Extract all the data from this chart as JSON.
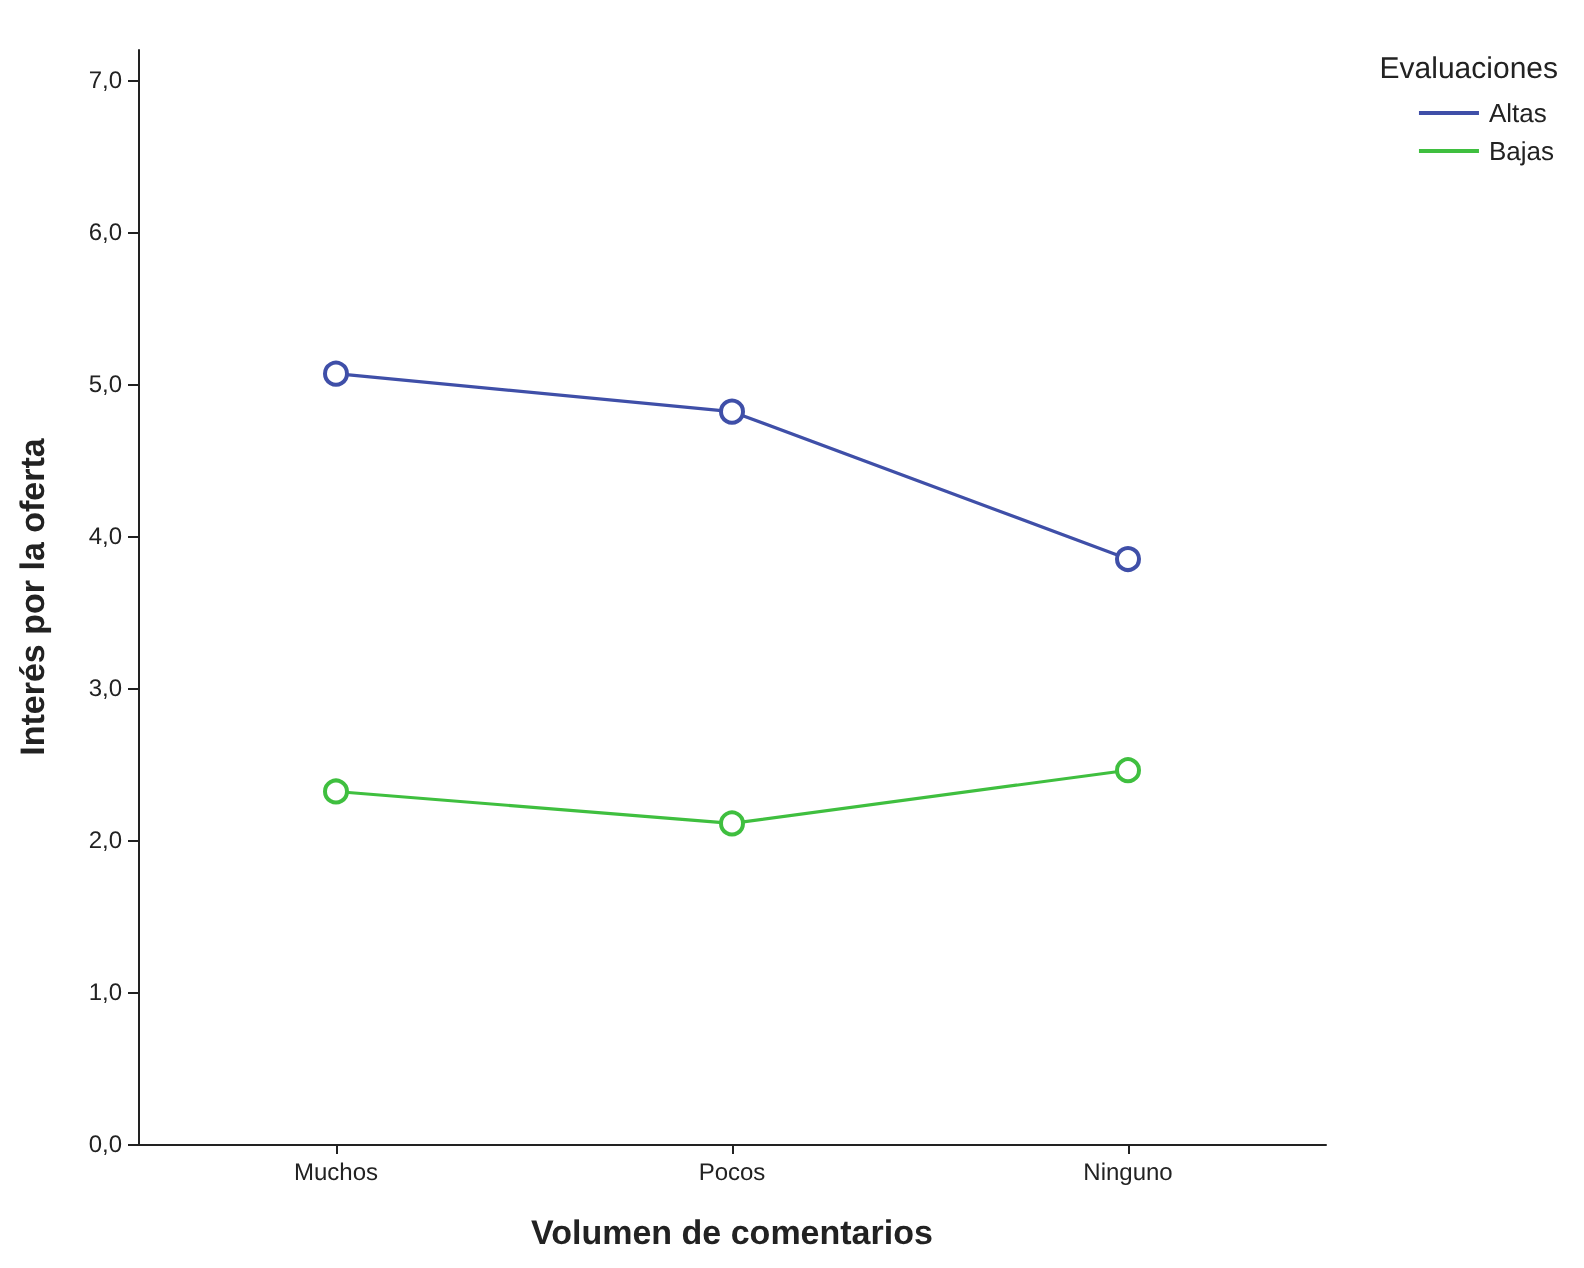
{
  "chart_data": {
    "type": "line",
    "xlabel": "Volumen de comentarios",
    "ylabel": "Interés por la oferta",
    "legend_title": "Evaluaciones",
    "categories": [
      "Muchos",
      "Pocos",
      "Ninguno"
    ],
    "series": [
      {
        "name": "Altas",
        "color": "#3f4fa8",
        "values": [
          5.07,
          4.82,
          3.85
        ]
      },
      {
        "name": "Bajas",
        "color": "#3fbf3f",
        "values": [
          2.32,
          2.11,
          2.46
        ]
      }
    ],
    "ylim": [
      0,
      7.2
    ],
    "yticks": [
      {
        "value": 0,
        "label": "0,0"
      },
      {
        "value": 1,
        "label": "1,0"
      },
      {
        "value": 2,
        "label": "2,0"
      },
      {
        "value": 3,
        "label": "3,0"
      },
      {
        "value": 4,
        "label": "4,0"
      },
      {
        "value": 5,
        "label": "5,0"
      },
      {
        "value": 6,
        "label": "6,0"
      },
      {
        "value": 7,
        "label": "7,0"
      }
    ],
    "grid": false,
    "legend": "top right",
    "marker": "circle",
    "line_style": "solid"
  }
}
